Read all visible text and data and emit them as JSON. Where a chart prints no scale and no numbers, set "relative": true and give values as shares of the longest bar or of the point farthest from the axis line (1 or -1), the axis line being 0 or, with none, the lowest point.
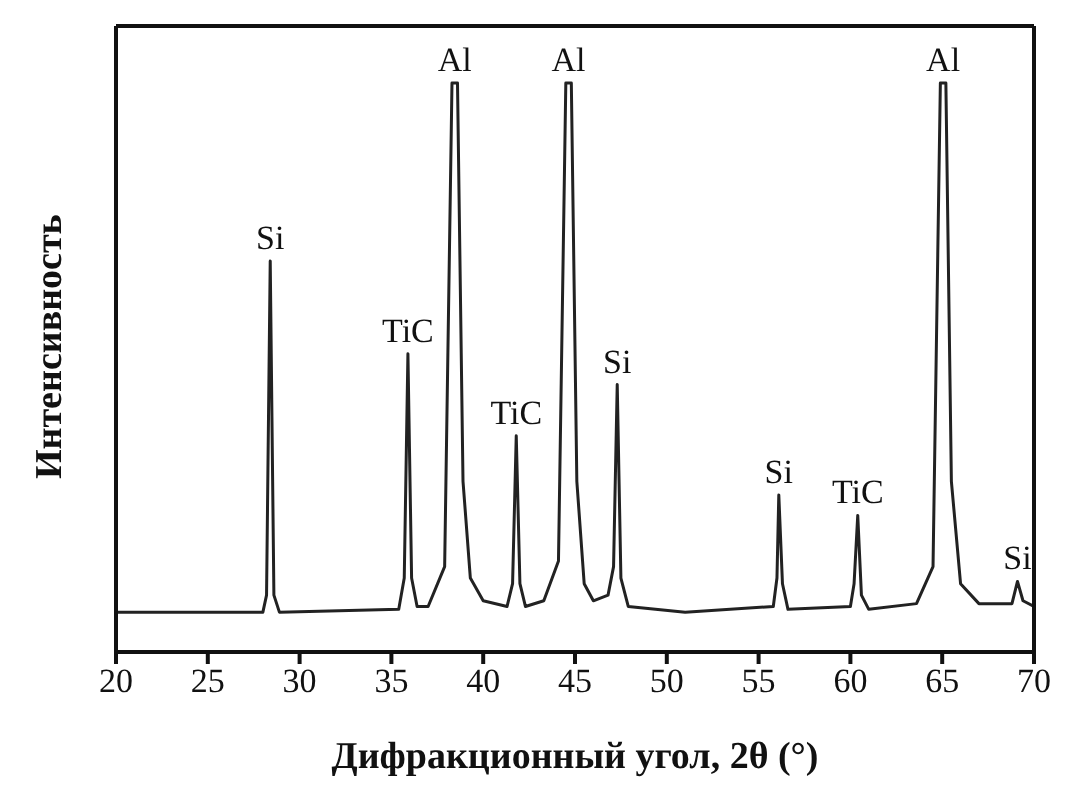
{
  "chart_data": {
    "type": "line",
    "relative": true,
    "xlabel": "Дифракционный угол, 2θ (°)",
    "ylabel": "Интенсивность",
    "color": "#222222",
    "marker": "none",
    "line_style": "solid",
    "xlim": [
      20,
      70
    ],
    "xticks": [
      20,
      25,
      30,
      35,
      40,
      45,
      50,
      55,
      60,
      65,
      70
    ],
    "x": [
      20,
      28,
      28.2,
      28.4,
      28.6,
      28.9,
      35.4,
      35.7,
      35.9,
      36.1,
      36.4,
      37.0,
      37.9,
      38.3,
      38.6,
      38.9,
      39.3,
      40.0,
      41.3,
      41.6,
      41.8,
      42.0,
      42.3,
      43.3,
      44.1,
      44.5,
      44.8,
      45.1,
      45.5,
      46.0,
      46.8,
      47.1,
      47.3,
      47.5,
      47.9,
      51,
      55.8,
      56.0,
      56.1,
      56.3,
      56.6,
      60.0,
      60.2,
      60.4,
      60.6,
      61,
      63.6,
      64.5,
      64.9,
      65.2,
      65.5,
      66,
      67,
      68.8,
      69.1,
      69.4,
      70
    ],
    "values": [
      0.07,
      0.07,
      0.1,
      0.687,
      0.1,
      0.07,
      0.075,
      0.13,
      0.524,
      0.13,
      0.08,
      0.08,
      0.15,
      1.0,
      1.0,
      0.3,
      0.13,
      0.09,
      0.08,
      0.12,
      0.38,
      0.12,
      0.08,
      0.09,
      0.16,
      1.0,
      1.0,
      0.3,
      0.12,
      0.09,
      0.1,
      0.15,
      0.47,
      0.13,
      0.08,
      0.07,
      0.08,
      0.13,
      0.276,
      0.12,
      0.075,
      0.08,
      0.12,
      0.24,
      0.1,
      0.075,
      0.085,
      0.15,
      1.0,
      1.0,
      0.3,
      0.12,
      0.085,
      0.085,
      0.124,
      0.09,
      0.08
    ],
    "annotations": [
      {
        "text": "Si",
        "x": 28.4,
        "y": 0.687
      },
      {
        "text": "TiC",
        "x": 35.9,
        "y": 0.524
      },
      {
        "text": "Al",
        "x": 38.45,
        "y": 1.0
      },
      {
        "text": "TiC",
        "x": 41.8,
        "y": 0.38
      },
      {
        "text": "Al",
        "x": 44.65,
        "y": 1.0
      },
      {
        "text": "Si",
        "x": 47.3,
        "y": 0.47
      },
      {
        "text": "Si",
        "x": 56.1,
        "y": 0.276
      },
      {
        "text": "TiC",
        "x": 60.4,
        "y": 0.24
      },
      {
        "text": "Al",
        "x": 65.05,
        "y": 1.0
      },
      {
        "text": "Si",
        "x": 69.1,
        "y": 0.124
      }
    ]
  }
}
